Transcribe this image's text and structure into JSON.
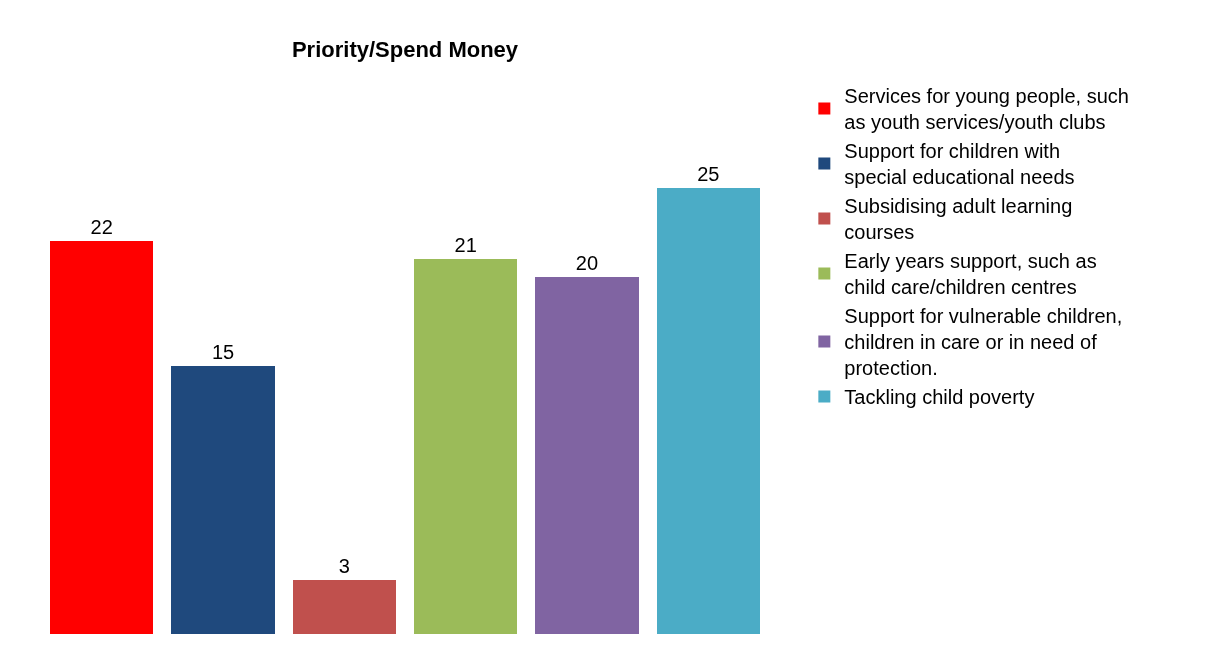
{
  "chart_data": {
    "type": "bar",
    "title": "Priority/Spend Money",
    "categories": [
      null,
      null,
      null,
      null,
      null,
      null
    ],
    "stacked": true,
    "series": [
      {
        "name": "Services for young people, such as youth services/youth clubs",
        "color": "#ff0000",
        "values": [
          22,
          null,
          null,
          null,
          null,
          null
        ]
      },
      {
        "name": "Support for children with special educational needs",
        "color": "#1f497d",
        "values": [
          null,
          15,
          null,
          null,
          null,
          null
        ]
      },
      {
        "name": "Subsidising adult learning courses",
        "color": "#c0504d",
        "values": [
          null,
          null,
          3,
          null,
          null,
          null
        ]
      },
      {
        "name": "Early years support, such as child care/children centres",
        "color": "#9bbb59",
        "values": [
          null,
          null,
          null,
          21,
          null,
          null
        ]
      },
      {
        "name": "Support for vulnerable children, children in care or in need of protection.",
        "color": "#8064a2",
        "values": [
          null,
          null,
          null,
          null,
          20,
          null
        ]
      },
      {
        "name": "Tackling child poverty",
        "color": "#4bacc6",
        "values": [
          null,
          null,
          null,
          null,
          null,
          25
        ]
      }
    ],
    "data_labels": true,
    "legend": "right",
    "grid": false,
    "tick_labels": false
  }
}
